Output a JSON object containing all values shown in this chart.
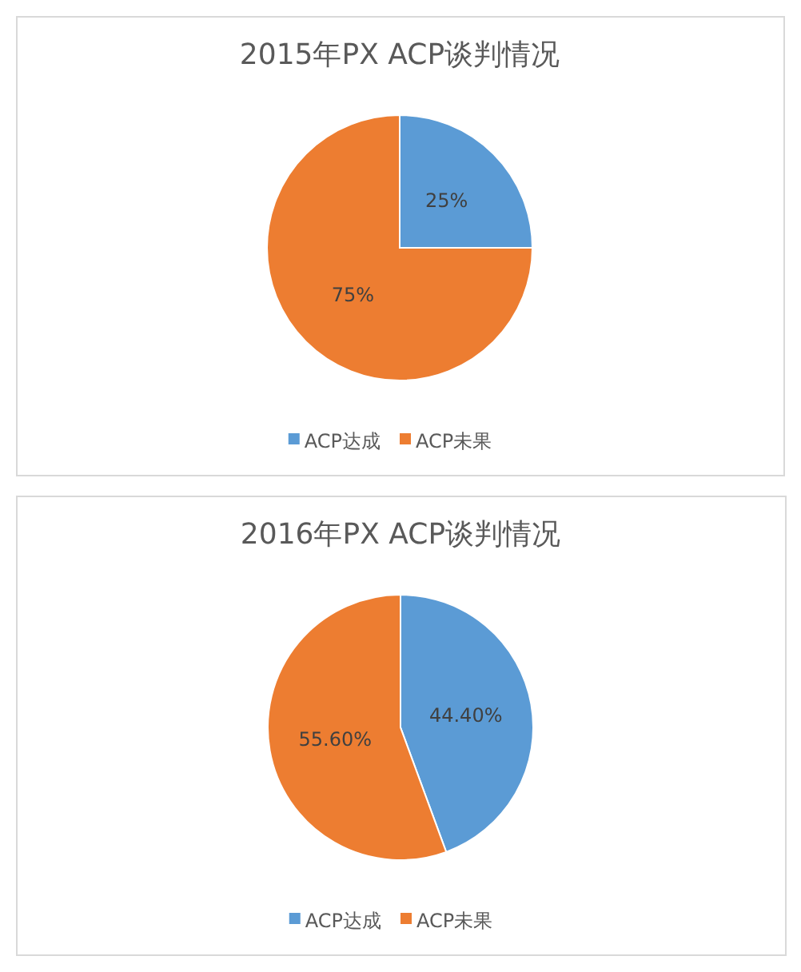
{
  "chart_data": [
    {
      "type": "pie",
      "title": "2015年PX ACP谈判情况",
      "categories": [
        "ACP达成",
        "ACP未果"
      ],
      "values": [
        25,
        75
      ],
      "colors": [
        "#5b9bd5",
        "#ed7d31"
      ],
      "value_labels": [
        "25%",
        "75%"
      ],
      "legend": "bottom"
    },
    {
      "type": "pie",
      "title": "2016年PX ACP谈判情况",
      "categories": [
        "ACP达成",
        "ACP未果"
      ],
      "values": [
        44.4,
        55.6
      ],
      "colors": [
        "#5b9bd5",
        "#ed7d31"
      ],
      "value_labels": [
        "44.40%",
        "55.60%"
      ],
      "legend": "bottom"
    }
  ]
}
